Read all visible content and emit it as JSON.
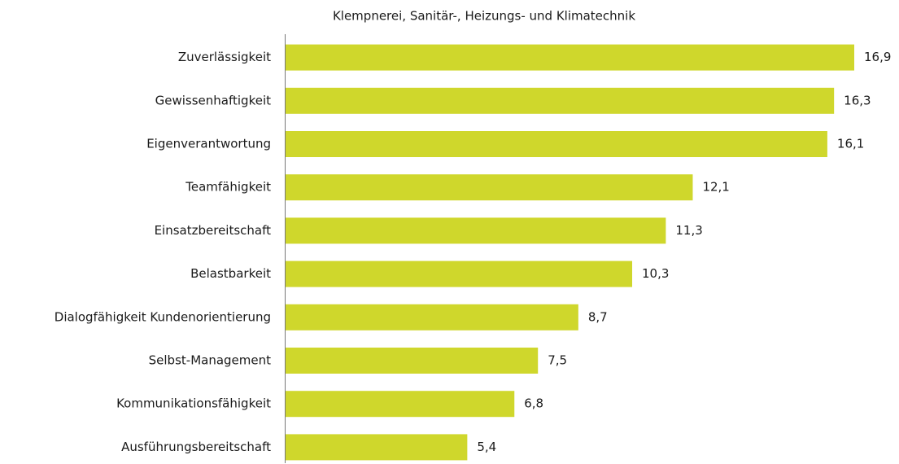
{
  "chart_data": {
    "type": "barh",
    "title": "Klempnerei,  Sanitär-, Heizungs- und Klimatechnik",
    "categories": [
      "Zuverlässigkeit",
      "Gewissenhaftigkeit",
      "Eigenverantwortung",
      "Teamfähigkeit",
      "Einsatzbereitschaft",
      "Belastbarkeit",
      "Dialogfähigkeit Kundenorientierung",
      "Selbst-Management",
      "Kommunikationsfähigkeit",
      "Ausführungsbereitschaft"
    ],
    "values": [
      16.9,
      16.3,
      16.1,
      12.1,
      11.3,
      10.3,
      8.7,
      7.5,
      6.8,
      5.4
    ],
    "value_labels": [
      "16,9",
      "16,3",
      "16,1",
      "12,1",
      "11,3",
      "10,3",
      "8,7",
      "7,5",
      "6,8",
      "5,4"
    ],
    "color": "#cfd72c"
  }
}
